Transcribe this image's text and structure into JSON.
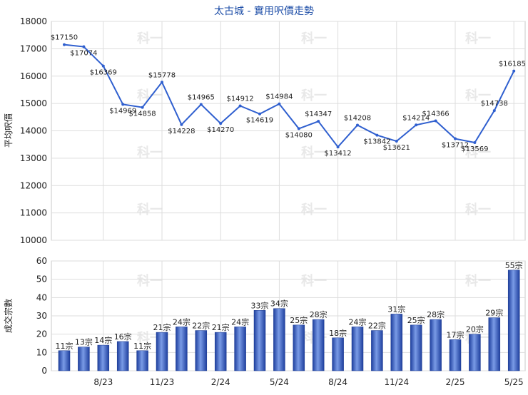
{
  "chart_data": [
    {
      "type": "line",
      "title": "太古城 - 實用呎價走勢",
      "ylabel": "平均呎價",
      "ylim": [
        10000,
        18000
      ],
      "yticks": [
        10000,
        11000,
        12000,
        13000,
        14000,
        15000,
        16000,
        17000,
        18000
      ],
      "x_tick_labels": [
        "8/23",
        "11/23",
        "2/24",
        "5/24",
        "8/24",
        "11/24",
        "2/25",
        "5/25"
      ],
      "grid": true,
      "values": [
        17150,
        17074,
        16369,
        14969,
        14858,
        15778,
        14228,
        14965,
        14270,
        14912,
        14619,
        14984,
        14080,
        14347,
        13412,
        14208,
        13842,
        13621,
        14214,
        14366,
        13712,
        13569,
        14738,
        16185
      ],
      "point_labels": [
        "$17150",
        "$17074",
        "$16369",
        "$14969",
        "$14858",
        "$15778",
        "$14228",
        "$14965",
        "$14270",
        "$14912",
        "$14619",
        "$14984",
        "$14080",
        "$14347",
        "$13412",
        "$14208",
        "$13842",
        "$13621",
        "$14214",
        "$14366",
        "$13712",
        "$13569",
        "$14738",
        "$16185"
      ],
      "color": "#2f5fcf"
    },
    {
      "type": "bar",
      "ylabel": "成交宗數",
      "ylim": [
        0,
        60
      ],
      "yticks": [
        0,
        10,
        20,
        30,
        40,
        50,
        60
      ],
      "x_tick_labels": [
        "8/23",
        "11/23",
        "2/24",
        "5/24",
        "8/24",
        "11/24",
        "2/25",
        "5/25"
      ],
      "grid": true,
      "values": [
        11,
        13,
        14,
        16,
        11,
        21,
        24,
        22,
        21,
        24,
        33,
        34,
        25,
        28,
        18,
        24,
        22,
        31,
        25,
        28,
        17,
        20,
        29,
        55
      ],
      "bar_labels": [
        "11宗",
        "13宗",
        "14宗",
        "16宗",
        "11宗",
        "21宗",
        "24宗",
        "22宗",
        "21宗",
        "24宗",
        "33宗",
        "34宗",
        "25宗",
        "28宗",
        "18宗",
        "24宗",
        "22宗",
        "31宗",
        "25宗",
        "28宗",
        "17宗",
        "20宗",
        "29宗",
        "55宗"
      ],
      "color": "#3b63c8"
    }
  ],
  "watermark": "科一"
}
